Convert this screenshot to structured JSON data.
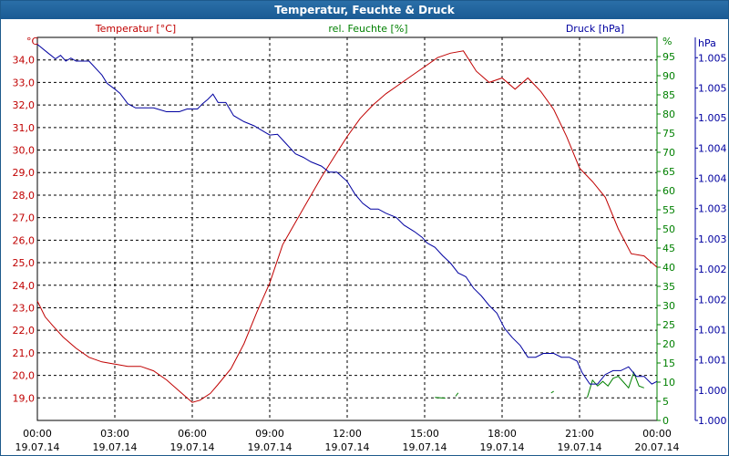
{
  "window": {
    "title": "Temperatur, Feuchte & Druck"
  },
  "chart_data": {
    "type": "line",
    "title": "Temperatur, Feuchte & Druck",
    "colors": {
      "temperature": "#c00000",
      "humidity": "#008000",
      "pressure": "#0000a0",
      "grid": "#000000"
    },
    "grid": true,
    "x_axis": {
      "range_hours": [
        0,
        24
      ],
      "ticks": [
        {
          "time": "00:00",
          "date": "19.07.14"
        },
        {
          "time": "03:00",
          "date": "19.07.14"
        },
        {
          "time": "06:00",
          "date": "19.07.14"
        },
        {
          "time": "09:00",
          "date": "19.07.14"
        },
        {
          "time": "12:00",
          "date": "19.07.14"
        },
        {
          "time": "15:00",
          "date": "19.07.14"
        },
        {
          "time": "18:00",
          "date": "19.07.14"
        },
        {
          "time": "21:00",
          "date": "19.07.14"
        },
        {
          "time": "00:00",
          "date": "20.07.14"
        }
      ]
    },
    "y_left": {
      "label": "Temperatur [°C]",
      "unit": "°C",
      "range": [
        18.0,
        35.0
      ],
      "ticks": [
        "34,0",
        "33,0",
        "32,0",
        "31,0",
        "30,0",
        "29,0",
        "28,0",
        "27,0",
        "26,0",
        "25,0",
        "24,0",
        "23,0",
        "22,0",
        "21,0",
        "20,0",
        "19,0"
      ],
      "tick_values": [
        34,
        33,
        32,
        31,
        30,
        29,
        28,
        27,
        26,
        25,
        24,
        23,
        22,
        21,
        20,
        19
      ]
    },
    "y_mid": {
      "label": "rel. Feuchte [%]",
      "unit": "%",
      "range": [
        0,
        100
      ],
      "ticks": [
        "95",
        "90",
        "85",
        "80",
        "75",
        "70",
        "65",
        "60",
        "55",
        "50",
        "45",
        "40",
        "35",
        "30",
        "25",
        "20",
        "15",
        "10",
        "5",
        "0"
      ],
      "tick_values": [
        95,
        90,
        85,
        80,
        75,
        70,
        65,
        60,
        55,
        50,
        45,
        40,
        35,
        30,
        25,
        20,
        15,
        10,
        5,
        0
      ]
    },
    "y_right": {
      "label": "Druck [hPa]",
      "unit": "hPa",
      "ticks": [
        "1.005",
        "1.005",
        "1.005",
        "1.004",
        "1.004",
        "1.003",
        "1.003",
        "1.002",
        "1.002",
        "1.001",
        "1.001",
        "1.000",
        "1.000"
      ],
      "tick_norm": [
        0.947,
        0.868,
        0.79,
        0.711,
        0.632,
        0.553,
        0.474,
        0.395,
        0.316,
        0.237,
        0.158,
        0.079,
        0.0
      ]
    },
    "series": [
      {
        "name": "Temperatur [°C]",
        "axis": "y_left",
        "color_key": "temperature",
        "x": [
          0,
          0.3,
          0.6,
          1,
          1.5,
          2,
          2.5,
          3,
          3.5,
          4,
          4.5,
          5,
          5.5,
          6,
          6.3,
          6.7,
          7,
          7.5,
          8,
          8.5,
          9,
          9.5,
          10,
          10.5,
          11,
          11.5,
          12,
          12.5,
          13,
          13.5,
          14,
          14.5,
          15,
          15.5,
          16,
          16.5,
          17,
          17.5,
          18,
          18.5,
          19,
          19.5,
          20,
          20.5,
          21,
          21.5,
          22,
          22.5,
          23,
          23.5,
          24
        ],
        "values": [
          23.3,
          22.6,
          22.2,
          21.7,
          21.2,
          20.8,
          20.6,
          20.5,
          20.4,
          20.4,
          20.2,
          19.8,
          19.3,
          18.8,
          18.9,
          19.2,
          19.6,
          20.3,
          21.4,
          22.8,
          24.1,
          25.8,
          26.8,
          27.8,
          28.8,
          29.7,
          30.6,
          31.4,
          32.0,
          32.5,
          32.9,
          33.3,
          33.7,
          34.1,
          34.3,
          34.4,
          33.5,
          33.0,
          33.2,
          32.7,
          33.2,
          32.6,
          31.8,
          30.6,
          29.2,
          28.6,
          27.9,
          26.5,
          25.4,
          25.3,
          24.8
        ]
      },
      {
        "name": "rel. Feuchte [%]",
        "axis": "y_mid",
        "color_key": "humidity",
        "segments": [
          {
            "x": [
              15.4,
              15.8
            ],
            "values": [
              6.0,
              5.8
            ]
          },
          {
            "x": [
              16.2,
              16.3
            ],
            "values": [
              6.3,
              7.2
            ]
          },
          {
            "x": [
              19.9,
              20.0
            ],
            "values": [
              7.2,
              7.6
            ]
          },
          {
            "x": [
              21.3,
              21.5,
              21.7,
              21.9,
              22.1,
              22.3,
              22.5,
              22.7,
              22.9,
              23.1,
              23.3,
              23.5
            ],
            "values": [
              6.0,
              10.5,
              9.0,
              10.2,
              9.0,
              11.0,
              11.5,
              10.0,
              8.5,
              12.5,
              9.0,
              8.5
            ]
          }
        ]
      },
      {
        "name": "Druck [hPa]",
        "axis": "y_right",
        "color_key": "pressure",
        "x": [
          0,
          0.4,
          0.7,
          0.9,
          1.1,
          1.3,
          1.5,
          2,
          2.5,
          2.7,
          3,
          3.2,
          3.5,
          3.8,
          4,
          4.5,
          5,
          5.3,
          5.5,
          5.8,
          6,
          6.2,
          6.4,
          6.6,
          6.8,
          7,
          7.3,
          7.6,
          8,
          8.4,
          8.7,
          9.0,
          9.3,
          9.6,
          10,
          10.3,
          10.6,
          11,
          11.3,
          11.6,
          12,
          12.3,
          12.6,
          12.9,
          13.2,
          13.5,
          13.9,
          14.2,
          14.6,
          14.9,
          15.1,
          15.4,
          15.7,
          16.0,
          16.3,
          16.6,
          16.9,
          17.2,
          17.5,
          17.8,
          18.1,
          18.4,
          18.7,
          19,
          19.3,
          19.6,
          20,
          20.3,
          20.6,
          20.9,
          21.1,
          21.4,
          21.7,
          22,
          22.3,
          22.6,
          22.9,
          23.2,
          23.5,
          23.8,
          24
        ],
        "values": [
          0.982,
          0.96,
          0.944,
          0.953,
          0.938,
          0.946,
          0.938,
          0.938,
          0.902,
          0.88,
          0.865,
          0.854,
          0.827,
          0.816,
          0.816,
          0.816,
          0.806,
          0.806,
          0.806,
          0.813,
          0.813,
          0.813,
          0.827,
          0.838,
          0.852,
          0.83,
          0.83,
          0.796,
          0.78,
          0.769,
          0.757,
          0.745,
          0.747,
          0.725,
          0.696,
          0.687,
          0.675,
          0.664,
          0.648,
          0.648,
          0.624,
          0.591,
          0.567,
          0.552,
          0.552,
          0.541,
          0.53,
          0.51,
          0.493,
          0.478,
          0.463,
          0.452,
          0.43,
          0.411,
          0.385,
          0.375,
          0.345,
          0.325,
          0.3,
          0.28,
          0.24,
          0.216,
          0.196,
          0.165,
          0.165,
          0.175,
          0.175,
          0.165,
          0.165,
          0.155,
          0.125,
          0.095,
          0.095,
          0.12,
          0.13,
          0.13,
          0.14,
          0.115,
          0.115,
          0.095,
          0.102
        ]
      }
    ]
  }
}
